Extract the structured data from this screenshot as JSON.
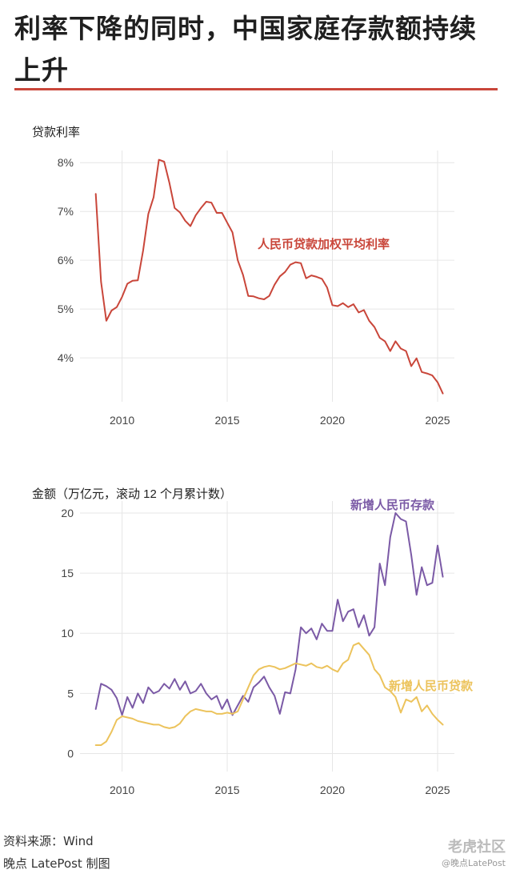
{
  "title": "利率下降的同时，中国家庭存款额持续上升",
  "footer": {
    "source": "资料来源：Wind",
    "credit": "晚点 LatePost 制图"
  },
  "watermark": {
    "brand": "老虎社区",
    "handle": "@晚点LatePost"
  },
  "colors": {
    "rate": "#c9463a",
    "deposit": "#7b5aa6",
    "loan": "#ecc35c",
    "accent_rule": "#c9463a"
  },
  "chart_data": [
    {
      "type": "line",
      "ylabel": "贷款利率",
      "xlim": [
        2008.0,
        2025.8
      ],
      "ylim": [
        3.1,
        8.25
      ],
      "xticks": [
        2010,
        2015,
        2020,
        2025
      ],
      "yticks": [
        4,
        5,
        6,
        7,
        8
      ],
      "ytick_labels": [
        "4%",
        "5%",
        "6%",
        "7%",
        "8%"
      ],
      "grid": true,
      "series": [
        {
          "name": "人民币贷款加权平均利率",
          "x": [
            2008.75,
            2009.0,
            2009.25,
            2009.5,
            2009.75,
            2010.0,
            2010.25,
            2010.5,
            2010.75,
            2011.0,
            2011.25,
            2011.5,
            2011.75,
            2012.0,
            2012.25,
            2012.5,
            2012.75,
            2013.0,
            2013.25,
            2013.5,
            2013.75,
            2014.0,
            2014.25,
            2014.5,
            2014.75,
            2015.0,
            2015.25,
            2015.5,
            2015.75,
            2016.0,
            2016.25,
            2016.5,
            2016.75,
            2017.0,
            2017.25,
            2017.5,
            2017.75,
            2018.0,
            2018.25,
            2018.5,
            2018.75,
            2019.0,
            2019.25,
            2019.5,
            2019.75,
            2020.0,
            2020.25,
            2020.5,
            2020.75,
            2021.0,
            2021.25,
            2021.5,
            2021.75,
            2022.0,
            2022.25,
            2022.5,
            2022.75,
            2023.0,
            2023.25,
            2023.5,
            2023.75,
            2024.0,
            2024.25,
            2024.5,
            2024.75,
            2025.0,
            2025.25
          ],
          "values": [
            7.36,
            5.56,
            4.76,
            4.97,
            5.04,
            5.25,
            5.52,
            5.58,
            5.59,
            6.2,
            6.95,
            7.29,
            8.06,
            8.02,
            7.59,
            7.07,
            6.98,
            6.81,
            6.7,
            6.92,
            7.07,
            7.2,
            7.18,
            6.97,
            6.97,
            6.77,
            6.57,
            6.0,
            5.7,
            5.27,
            5.26,
            5.22,
            5.2,
            5.27,
            5.5,
            5.67,
            5.76,
            5.91,
            5.96,
            5.94,
            5.63,
            5.69,
            5.66,
            5.62,
            5.44,
            5.08,
            5.06,
            5.12,
            5.04,
            5.1,
            4.93,
            4.98,
            4.76,
            4.63,
            4.41,
            4.34,
            4.14,
            4.34,
            4.19,
            4.14,
            3.83,
            3.99,
            3.71,
            3.68,
            3.64,
            3.5,
            3.27
          ]
        }
      ]
    },
    {
      "type": "line",
      "ylabel": "金额（万亿元，滚动 12 个月累计数）",
      "xlim": [
        2008.0,
        2025.8
      ],
      "ylim": [
        -1.5,
        21.0
      ],
      "xticks": [
        2010,
        2015,
        2020,
        2025
      ],
      "yticks": [
        0,
        5,
        10,
        15,
        20
      ],
      "grid": true,
      "series": [
        {
          "name": "新增人民币存款",
          "x": [
            2008.75,
            2009.0,
            2009.25,
            2009.5,
            2009.75,
            2010.0,
            2010.25,
            2010.5,
            2010.75,
            2011.0,
            2011.25,
            2011.5,
            2011.75,
            2012.0,
            2012.25,
            2012.5,
            2012.75,
            2013.0,
            2013.25,
            2013.5,
            2013.75,
            2014.0,
            2014.25,
            2014.5,
            2014.75,
            2015.0,
            2015.25,
            2015.5,
            2015.75,
            2016.0,
            2016.25,
            2016.5,
            2016.75,
            2017.0,
            2017.25,
            2017.5,
            2017.75,
            2018.0,
            2018.25,
            2018.5,
            2018.75,
            2019.0,
            2019.25,
            2019.5,
            2019.75,
            2020.0,
            2020.25,
            2020.5,
            2020.75,
            2021.0,
            2021.25,
            2021.5,
            2021.75,
            2022.0,
            2022.25,
            2022.5,
            2022.75,
            2023.0,
            2023.25,
            2023.5,
            2023.75,
            2024.0,
            2024.25,
            2024.5,
            2024.75,
            2025.0,
            2025.25
          ],
          "values": [
            3.7,
            5.8,
            5.6,
            5.3,
            4.6,
            3.2,
            4.7,
            3.8,
            5.0,
            4.2,
            5.5,
            5.0,
            5.2,
            5.8,
            5.4,
            6.2,
            5.3,
            6.0,
            5.0,
            5.2,
            5.8,
            5.0,
            4.5,
            4.8,
            3.7,
            4.5,
            3.2,
            4.0,
            4.8,
            4.3,
            5.5,
            5.9,
            6.4,
            5.5,
            4.8,
            3.3,
            5.1,
            5.0,
            7.0,
            10.5,
            10.0,
            10.4,
            9.5,
            10.8,
            10.2,
            10.2,
            12.8,
            11.0,
            11.8,
            12.0,
            10.5,
            11.5,
            9.8,
            10.5,
            15.8,
            14.0,
            18.0,
            20.0,
            19.5,
            19.3,
            16.5,
            13.2,
            15.5,
            14.0,
            14.2,
            17.3,
            14.7
          ]
        },
        {
          "name": "新增人民币贷款",
          "x": [
            2008.75,
            2009.0,
            2009.25,
            2009.5,
            2009.75,
            2010.0,
            2010.25,
            2010.5,
            2010.75,
            2011.0,
            2011.25,
            2011.5,
            2011.75,
            2012.0,
            2012.25,
            2012.5,
            2012.75,
            2013.0,
            2013.25,
            2013.5,
            2013.75,
            2014.0,
            2014.25,
            2014.5,
            2014.75,
            2015.0,
            2015.25,
            2015.5,
            2015.75,
            2016.0,
            2016.25,
            2016.5,
            2016.75,
            2017.0,
            2017.25,
            2017.5,
            2017.75,
            2018.0,
            2018.25,
            2018.5,
            2018.75,
            2019.0,
            2019.25,
            2019.5,
            2019.75,
            2020.0,
            2020.25,
            2020.5,
            2020.75,
            2021.0,
            2021.25,
            2021.5,
            2021.75,
            2022.0,
            2022.25,
            2022.5,
            2022.75,
            2023.0,
            2023.25,
            2023.5,
            2023.75,
            2024.0,
            2024.25,
            2024.5,
            2024.75,
            2025.0,
            2025.25
          ],
          "values": [
            0.7,
            0.7,
            1.0,
            1.8,
            2.8,
            3.1,
            3.0,
            2.9,
            2.7,
            2.6,
            2.5,
            2.4,
            2.4,
            2.2,
            2.1,
            2.2,
            2.5,
            3.1,
            3.5,
            3.7,
            3.6,
            3.5,
            3.5,
            3.3,
            3.3,
            3.4,
            3.3,
            3.5,
            4.5,
            5.5,
            6.5,
            7.0,
            7.2,
            7.3,
            7.2,
            7.0,
            7.1,
            7.3,
            7.5,
            7.4,
            7.3,
            7.5,
            7.2,
            7.1,
            7.3,
            7.0,
            6.8,
            7.5,
            7.8,
            9.0,
            9.2,
            8.7,
            8.2,
            7.0,
            6.5,
            5.5,
            5.2,
            4.7,
            3.4,
            4.5,
            4.3,
            4.7,
            3.5,
            4.0,
            3.3,
            2.8,
            2.4
          ]
        }
      ]
    }
  ]
}
